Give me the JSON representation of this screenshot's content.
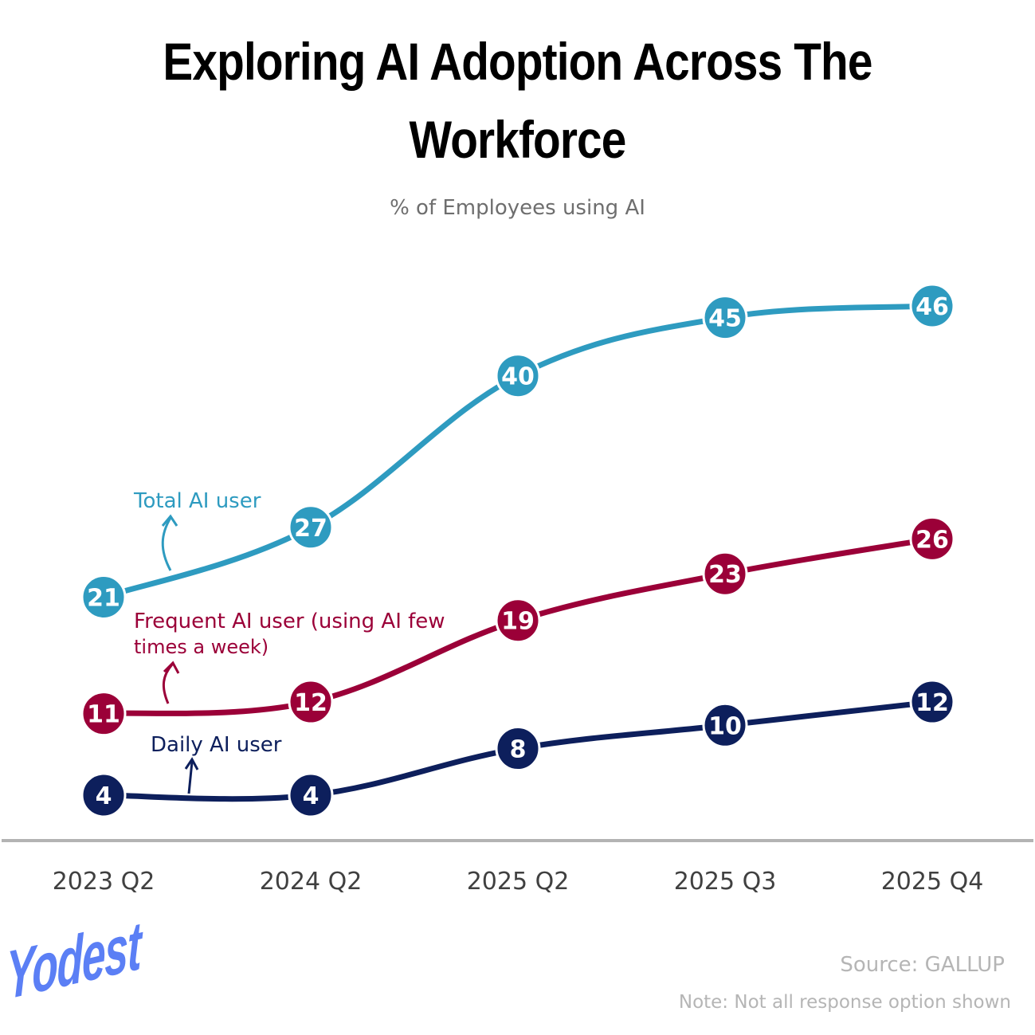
{
  "title": "Exploring AI Adoption Across The Workforce",
  "subtitle": "% of Employees using AI",
  "source": "Source: GALLUP",
  "note": "Note: Not all response option shown",
  "logo": "Yodest",
  "chart_data": {
    "type": "line",
    "title": "Exploring AI Adoption Across The Workforce",
    "subtitle": "% of Employees using AI",
    "categories": [
      "2023 Q2",
      "2024 Q2",
      "2025 Q2",
      "2025 Q3",
      "2025 Q4"
    ],
    "ylim": [
      0,
      46
    ],
    "grid": false,
    "series": [
      {
        "name": "Total AI user",
        "values": [
          21,
          27,
          40,
          45,
          46
        ],
        "color": "#2e9bc0"
      },
      {
        "name": "Frequent AI user (using AI few times a week)",
        "values": [
          11,
          12,
          19,
          23,
          26
        ],
        "color": "#9b0038"
      },
      {
        "name": "Daily AI user",
        "values": [
          4,
          4,
          8,
          10,
          12
        ],
        "color": "#0d1f5c"
      }
    ],
    "annotations": {
      "total": "Total AI user",
      "frequent_line1": "Frequent AI user (using AI few",
      "frequent_line2": "times a week)",
      "daily": "Daily AI user"
    },
    "axis_color": "#b3b3b3"
  }
}
